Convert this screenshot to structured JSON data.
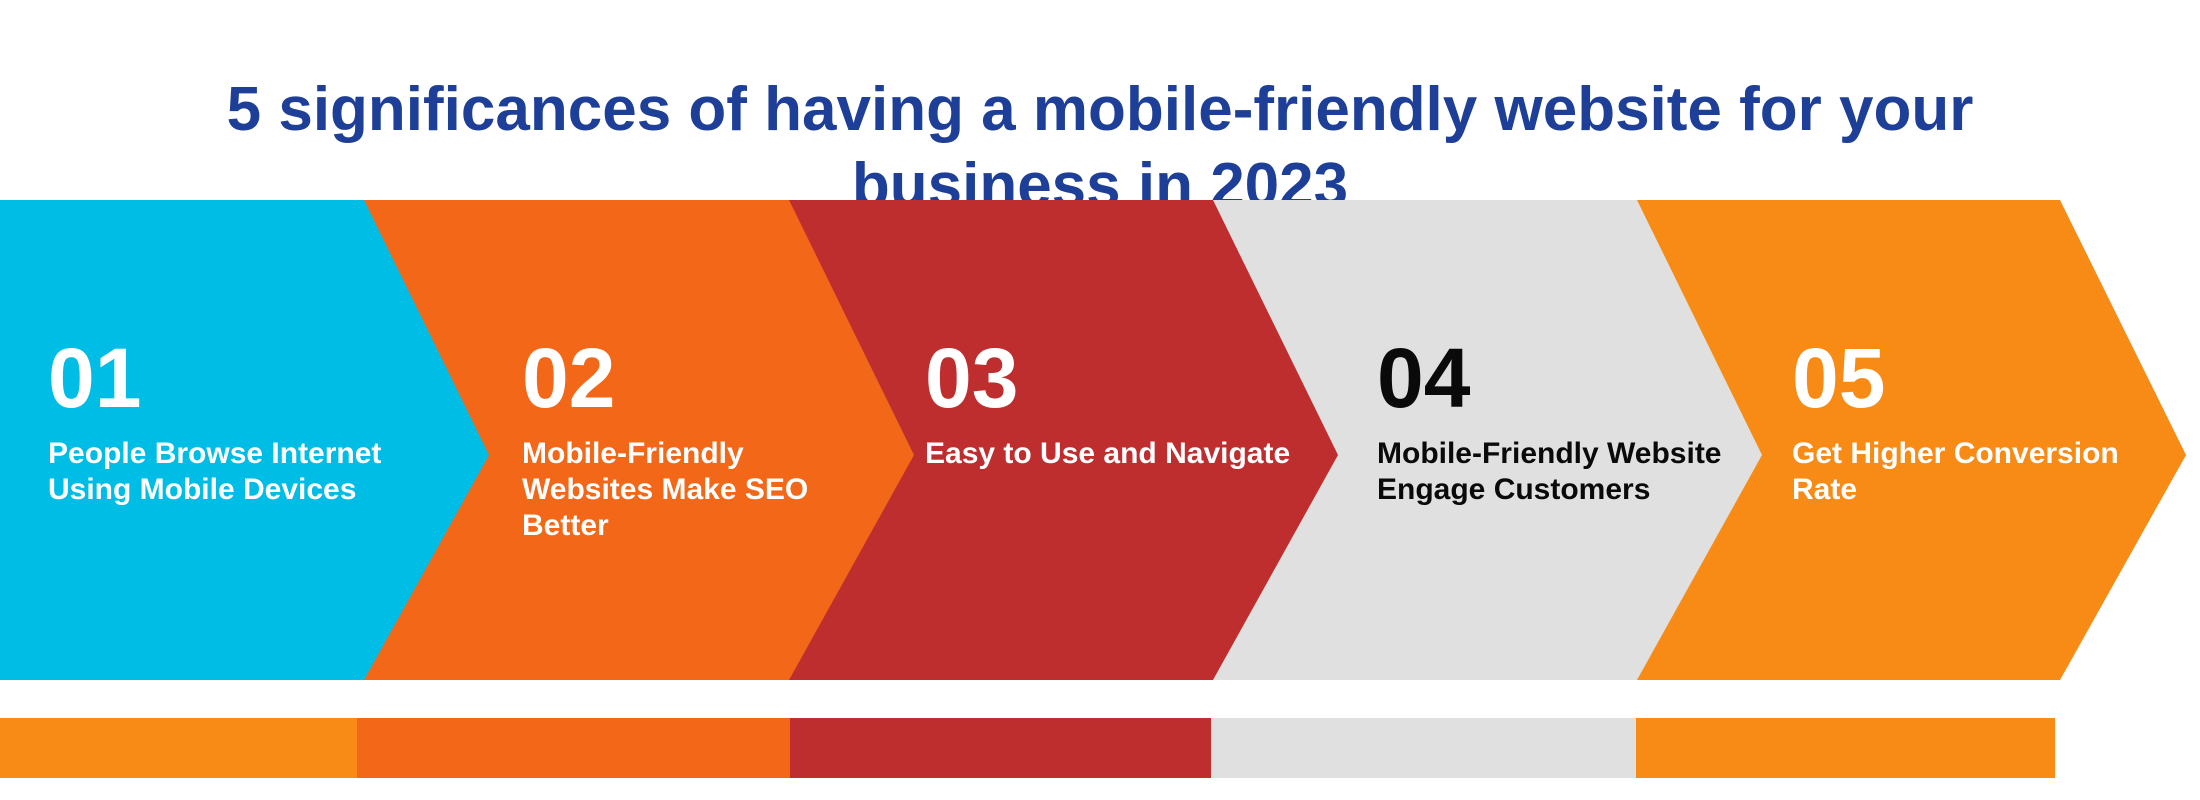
{
  "title": {
    "line1": "5 significances of having a mobile-friendly website for your",
    "line2": "business in 2023"
  },
  "colors": {
    "title": "#1e3f97",
    "cyan": "#00bde6",
    "orange": "#f26818",
    "red": "#bf2e2f",
    "gray": "#e0e0e0",
    "amber": "#f78b15"
  },
  "steps": [
    {
      "number": "01",
      "line1": "People Browse Internet",
      "line2": "Using Mobile Devices",
      "line3": "",
      "color": "#00bde6",
      "text_color": "light"
    },
    {
      "number": "02",
      "line1": "Mobile-Friendly",
      "line2": "Websites Make SEO",
      "line3": "Better",
      "color": "#f26818",
      "text_color": "light"
    },
    {
      "number": "03",
      "line1": "Easy to Use and Navigate",
      "line2": "",
      "line3": "",
      "color": "#bf2e2f",
      "text_color": "light"
    },
    {
      "number": "04",
      "line1": "Mobile-Friendly Website",
      "line2": "Engage Customers",
      "line3": "",
      "color": "#e0e0e0",
      "text_color": "dark"
    },
    {
      "number": "05",
      "line1": "Get Higher Conversion",
      "line2": "Rate",
      "line3": "",
      "color": "#f78b15",
      "text_color": "light"
    }
  ],
  "bottom_bar": [
    "#f78b15",
    "#f26818",
    "#bf2e2f",
    "#e0e0e0",
    "#f78b15"
  ]
}
